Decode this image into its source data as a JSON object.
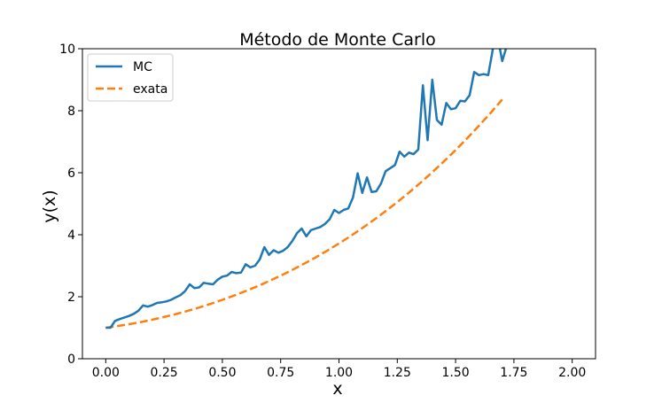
{
  "chart_data": {
    "type": "line",
    "title": "Método de Monte Carlo",
    "xlabel": "x",
    "ylabel": "y(x)",
    "xlim": [
      -0.1,
      2.1
    ],
    "ylim": [
      0,
      10
    ],
    "xticks": [
      0.0,
      0.25,
      0.5,
      0.75,
      1.0,
      1.25,
      1.5,
      1.75,
      2.0
    ],
    "xtick_labels": [
      "0.00",
      "0.25",
      "0.50",
      "0.75",
      "1.00",
      "1.25",
      "1.50",
      "1.75",
      "2.00"
    ],
    "yticks": [
      0,
      2,
      4,
      6,
      8,
      10
    ],
    "ytick_labels": [
      "0",
      "2",
      "4",
      "6",
      "8",
      "10"
    ],
    "grid": false,
    "legend_position": "top-left",
    "series": [
      {
        "name": "MC",
        "color": "#1f77b4",
        "style": "solid",
        "x": [
          0.0,
          0.02,
          0.04,
          0.06,
          0.08,
          0.1,
          0.12,
          0.14,
          0.16,
          0.18,
          0.2,
          0.22,
          0.24,
          0.26,
          0.28,
          0.3,
          0.32,
          0.34,
          0.36,
          0.38,
          0.4,
          0.42,
          0.44,
          0.46,
          0.48,
          0.5,
          0.52,
          0.54,
          0.56,
          0.58,
          0.6,
          0.62,
          0.64,
          0.66,
          0.68,
          0.7,
          0.72,
          0.74,
          0.76,
          0.78,
          0.8,
          0.82,
          0.84,
          0.86,
          0.88,
          0.9,
          0.92,
          0.94,
          0.96,
          0.98,
          1.0,
          1.02,
          1.04,
          1.06,
          1.08,
          1.1,
          1.12,
          1.14,
          1.16,
          1.18,
          1.2,
          1.22,
          1.24,
          1.26,
          1.28,
          1.3,
          1.32,
          1.34,
          1.36,
          1.38,
          1.4,
          1.42,
          1.44,
          1.46,
          1.48,
          1.5,
          1.52,
          1.54,
          1.56,
          1.58,
          1.6,
          1.62,
          1.64,
          1.66,
          1.68,
          1.7,
          1.72
        ],
        "values": [
          1.0,
          1.0,
          1.22,
          1.28,
          1.33,
          1.38,
          1.45,
          1.55,
          1.72,
          1.68,
          1.73,
          1.8,
          1.82,
          1.85,
          1.9,
          1.98,
          2.05,
          2.18,
          2.4,
          2.28,
          2.3,
          2.45,
          2.42,
          2.4,
          2.55,
          2.65,
          2.68,
          2.8,
          2.76,
          2.78,
          3.05,
          2.95,
          3.0,
          3.2,
          3.6,
          3.35,
          3.5,
          3.42,
          3.48,
          3.6,
          3.8,
          4.05,
          4.2,
          3.95,
          4.15,
          4.2,
          4.25,
          4.35,
          4.5,
          4.8,
          4.7,
          4.8,
          4.85,
          5.2,
          5.98,
          5.35,
          5.85,
          5.38,
          5.4,
          5.65,
          6.05,
          6.15,
          6.25,
          6.68,
          6.52,
          6.65,
          6.6,
          6.75,
          8.82,
          7.05,
          9.0,
          7.7,
          7.55,
          8.25,
          8.05,
          8.08,
          8.32,
          8.3,
          8.5,
          9.25,
          9.15,
          9.18,
          9.15,
          10.0,
          10.4,
          9.6,
          10.1
        ]
      },
      {
        "name": "exata",
        "color": "#ff7f0e",
        "style": "dashed",
        "function": "exp(x) + x^2",
        "x": [
          0.0,
          0.05,
          0.1,
          0.15,
          0.2,
          0.25,
          0.3,
          0.35,
          0.4,
          0.45,
          0.5,
          0.55,
          0.6,
          0.65,
          0.7,
          0.75,
          0.8,
          0.85,
          0.9,
          0.95,
          1.0,
          1.05,
          1.1,
          1.15,
          1.2,
          1.25,
          1.3,
          1.35,
          1.4,
          1.45,
          1.5,
          1.55,
          1.6,
          1.65,
          1.7
        ],
        "values": [
          1.0,
          1.054,
          1.115,
          1.184,
          1.261,
          1.347,
          1.44,
          1.541,
          1.652,
          1.771,
          1.899,
          2.036,
          2.182,
          2.338,
          2.504,
          2.68,
          2.866,
          3.062,
          3.27,
          3.489,
          3.718,
          3.96,
          4.214,
          4.48,
          4.76,
          5.053,
          5.359,
          5.68,
          6.015,
          6.366,
          6.732,
          7.114,
          7.513,
          7.929,
          8.364
        ]
      }
    ]
  }
}
